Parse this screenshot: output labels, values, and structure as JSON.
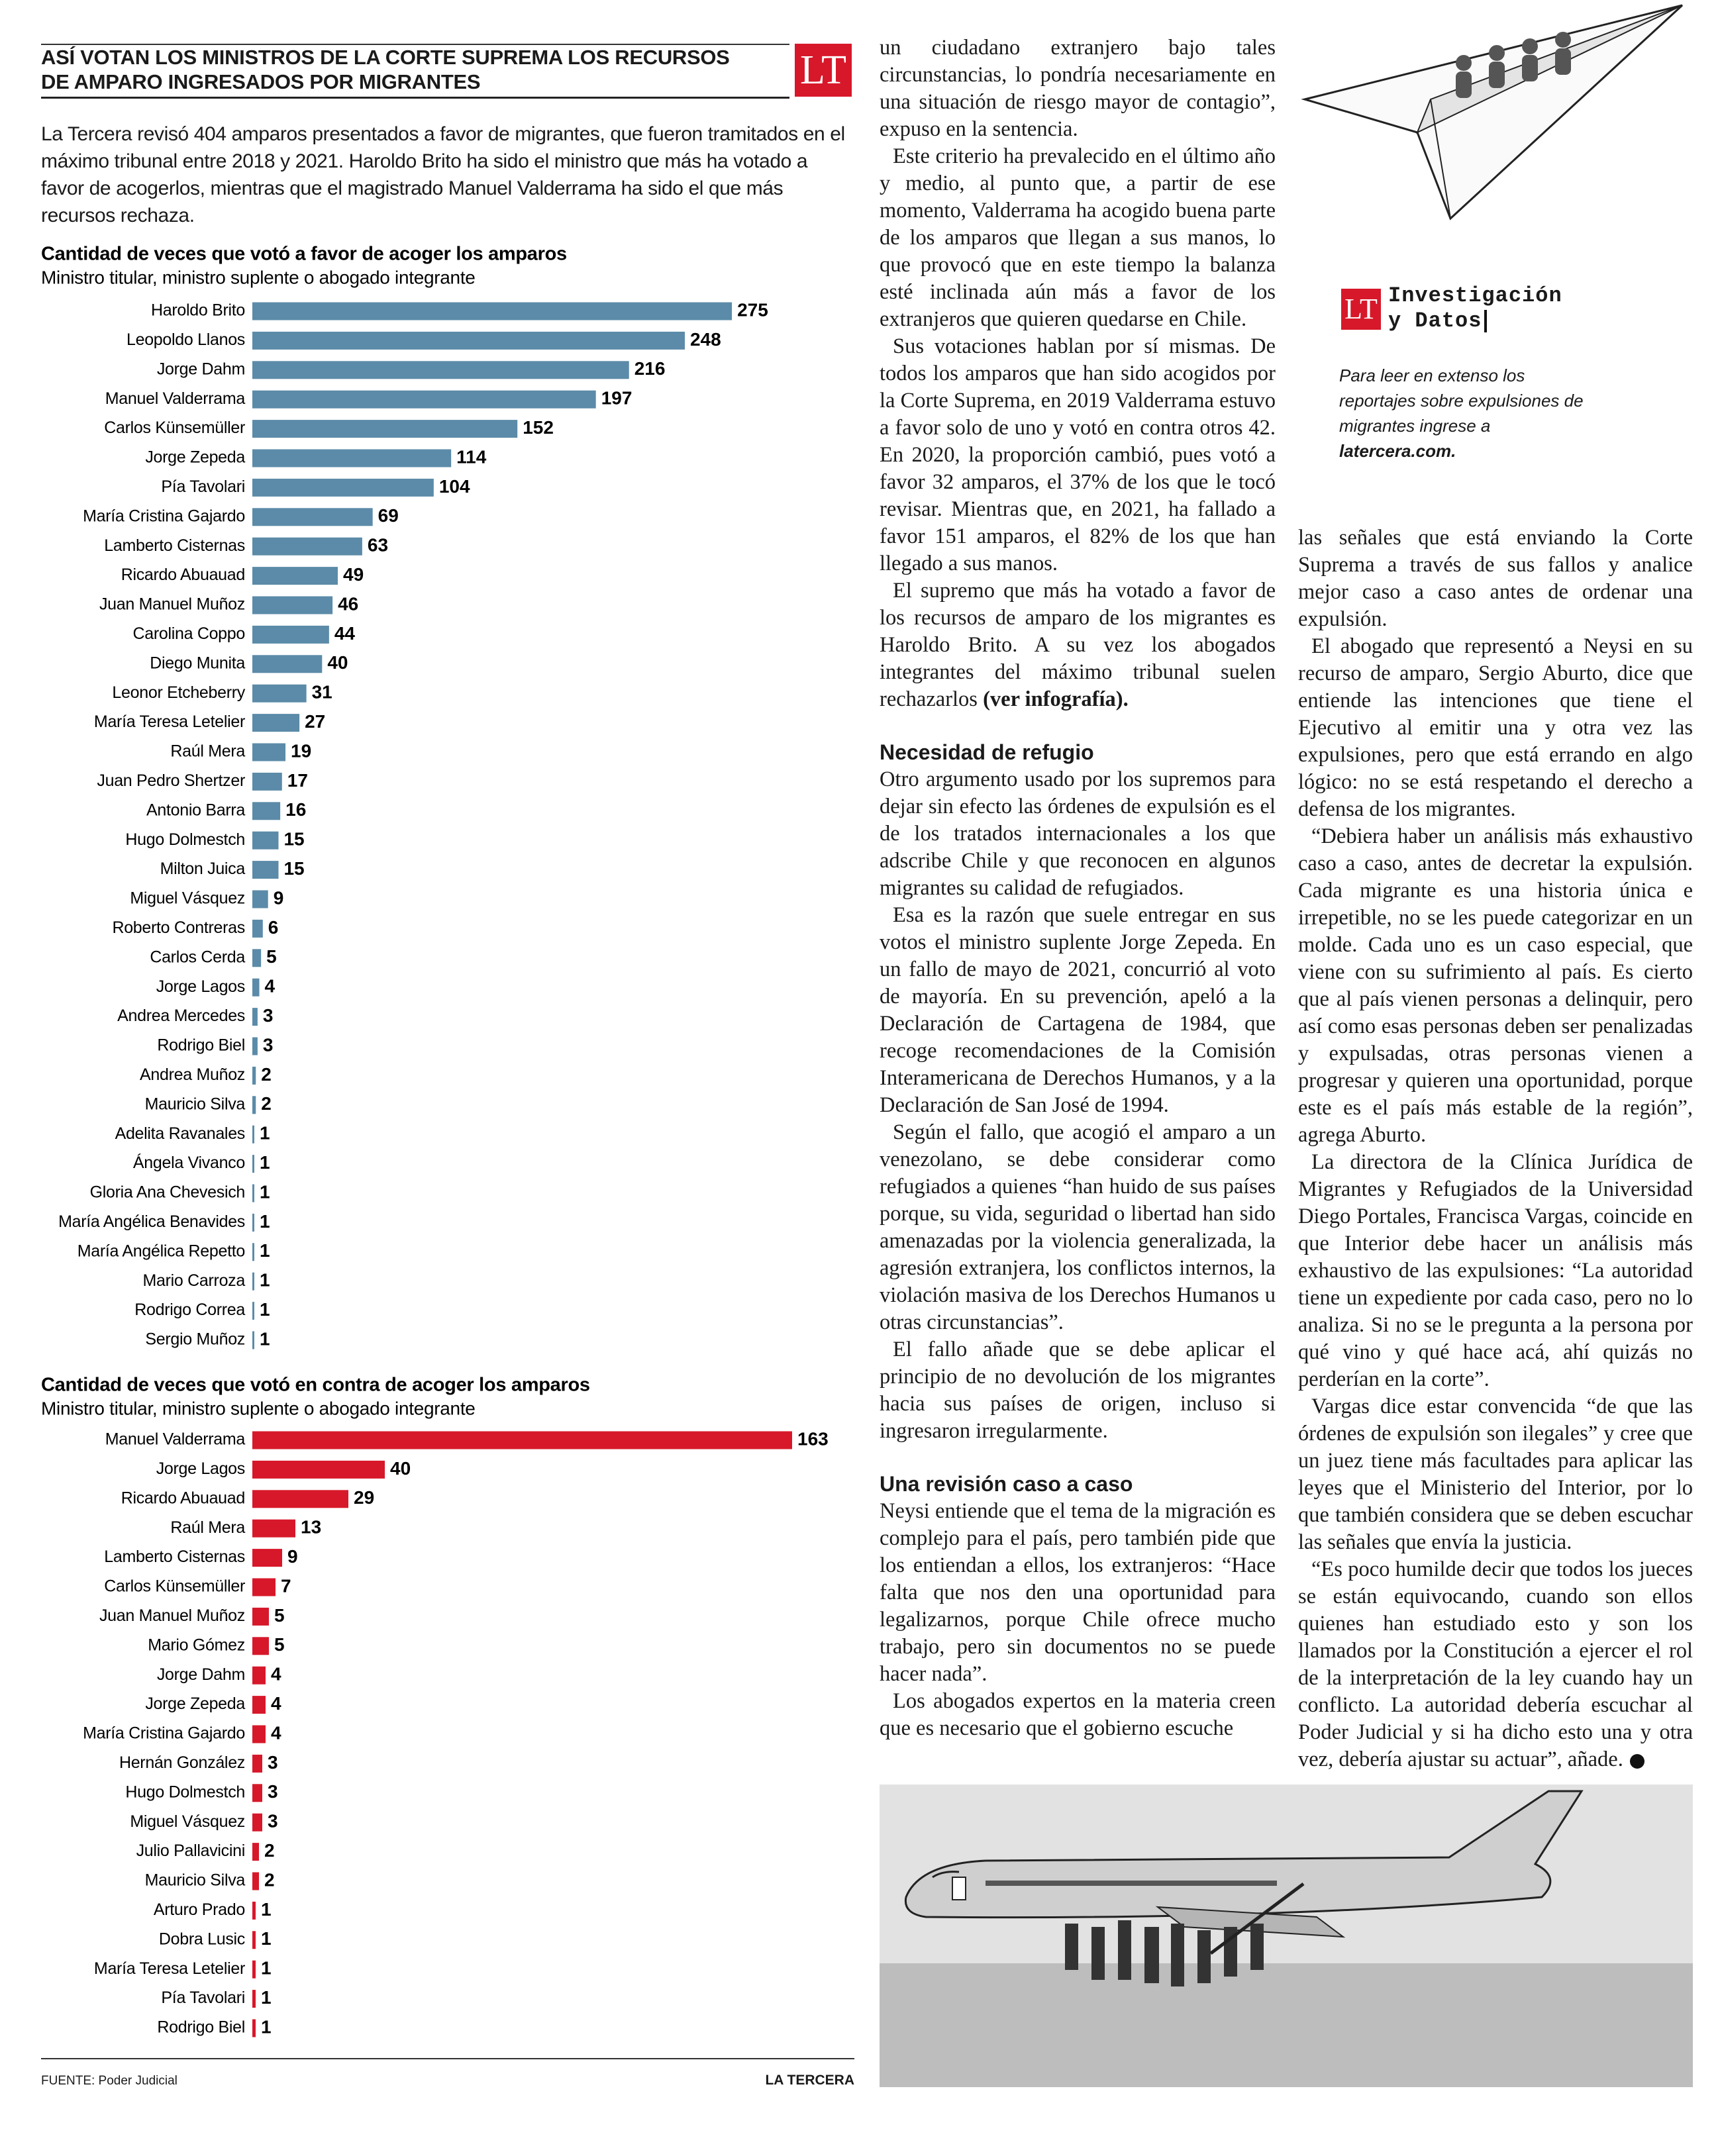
{
  "header": {
    "title_lines": [
      "ASÍ VOTAN LOS MINISTROS DE LA CORTE SUPREMA LOS RECURSOS",
      "DE AMPARO INGRESADOS POR MIGRANTES"
    ],
    "logo": "LT"
  },
  "intro": "La Tercera revisó 404 amparos presentados a favor de migrantes, que fueron tramitados en el máximo tribunal entre 2018 y 2021. Haroldo Brito ha sido el ministro que más ha votado a favor de acogerlos, mientras que el magistrado Manuel Valderrama ha sido el que más recursos rechaza.",
  "charts": [
    {
      "type": "bar",
      "orientation": "horizontal",
      "title": "Cantidad de veces que votó a favor de acoger los amparos",
      "subtitle": "Ministro titular, ministro suplente o abogado integrante",
      "color": "#5b8ba8",
      "categories": [
        "Haroldo Brito",
        "Leopoldo Llanos",
        "Jorge Dahm",
        "Manuel Valderrama",
        "Carlos Künsemüller",
        "Jorge Zepeda",
        "Pía Tavolari",
        "María Cristina Gajardo",
        "Lamberto Cisternas",
        "Ricardo Abuauad",
        "Juan Manuel Muñoz",
        "Carolina Coppo",
        "Diego Munita",
        "Leonor Etcheberry",
        "María Teresa Letelier",
        "Raúl Mera",
        "Juan Pedro Shertzer",
        "Antonio Barra",
        "Hugo Dolmestch",
        "Milton Juica",
        "Miguel Vásquez",
        "Roberto Contreras",
        "Carlos Cerda",
        "Jorge Lagos",
        "Andrea Mercedes",
        "Rodrigo Biel",
        "Andrea Muñoz",
        "Mauricio Silva",
        "Adelita Ravanales",
        "Ángela Vivanco",
        "Gloria Ana Chevesich",
        "María Angélica Benavides",
        "María Angélica Repetto",
        "Mario Carroza",
        "Rodrigo Correa",
        "Sergio Muñoz"
      ],
      "values": [
        275,
        248,
        216,
        197,
        152,
        114,
        104,
        69,
        63,
        49,
        46,
        44,
        40,
        31,
        27,
        19,
        17,
        16,
        15,
        15,
        9,
        6,
        5,
        4,
        3,
        3,
        2,
        2,
        1,
        1,
        1,
        1,
        1,
        1,
        1,
        1
      ]
    },
    {
      "type": "bar",
      "orientation": "horizontal",
      "title": "Cantidad de veces que votó en contra de acoger los amparos",
      "subtitle": "Ministro titular, ministro suplente o abogado integrante",
      "color": "#d7182a",
      "categories": [
        "Manuel Valderrama",
        "Jorge Lagos",
        "Ricardo Abuauad",
        "Raúl Mera",
        "Lamberto Cisternas",
        "Carlos Künsemüller",
        "Juan Manuel Muñoz",
        "Mario Gómez",
        "Jorge Dahm",
        "Jorge Zepeda",
        "María Cristina Gajardo",
        "Hernán González",
        "Hugo Dolmestch",
        "Miguel Vásquez",
        "Julio Pallavicini",
        "Mauricio Silva",
        "Arturo Prado",
        "Dobra Lusic",
        "María Teresa Letelier",
        "Pía Tavolari",
        "Rodrigo Biel"
      ],
      "values": [
        163,
        40,
        29,
        13,
        9,
        7,
        5,
        5,
        4,
        4,
        4,
        3,
        3,
        3,
        2,
        2,
        1,
        1,
        1,
        1,
        1
      ]
    }
  ],
  "footer": {
    "source": "FUENTE: Poder Judicial",
    "brand": "LA TERCERA"
  },
  "promo": {
    "logo": "LT",
    "title_lines": [
      "Investigación",
      "y Datos"
    ],
    "note": "Para leer en extenso los reportajes sobre expulsiones de migrantes ingrese a",
    "link": "latercera.com."
  },
  "article": {
    "middle": [
      {
        "text": "un ciudadano extranjero bajo tales circunstancias, lo pondría necesariamente en una situación de riesgo mayor de contagio”, expuso en la sentencia."
      },
      {
        "text": "Este criterio ha prevalecido en el último año y medio, al punto que, a partir de ese momento, Valderrama ha acogido buena parte de los amparos que llegan a sus manos, lo que provocó que en este tiempo la balanza esté inclinada aún más a favor de los extranjeros que quieren quedarse en Chile."
      },
      {
        "text": "Sus votaciones hablan por sí mismas. De todos los amparos que han sido acogidos por la Corte Suprema, en 2019 Valderrama estuvo a favor solo de uno y votó en contra otros 42. En 2020, la proporción cambió, pues votó a favor 32 amparos, el 37% de los que le tocó revisar. Mientras que, en 2021, ha fallado a favor 151 amparos, el 82% de los que han llegado a sus manos."
      },
      {
        "text": "El supremo que más ha votado a favor de los recursos de amparo de los migrantes es Haroldo Brito. A su vez los abogados integrantes del máximo tribunal suelen rechazarlos",
        "bold": "(ver infografía)."
      },
      {
        "heading": "Necesidad de refugio"
      },
      {
        "text": "Otro argumento usado por los supremos para dejar sin efecto las órdenes de expulsión es el de los tratados internacionales a los que adscribe Chile y que reconocen en algunos migrantes su calidad de refugiados."
      },
      {
        "text": "Esa es la razón que suele entregar en sus votos el ministro suplente Jorge Zepeda. En un fallo de mayo de 2021, concurrió al voto de mayoría. En su prevención, apeló a la Declaración de Cartagena de 1984, que recoge recomendaciones de la Comisión Interamericana de Derechos Humanos, y a la Declaración de San José de 1994."
      },
      {
        "text": "Según el fallo, que acogió el amparo a un venezolano, se debe considerar como refugiados a quienes “han huido de sus países porque, su vida, seguridad o libertad han sido amenazadas por la violencia generalizada, la agresión extranjera, los conflictos internos, la violación masiva de los Derechos Humanos u otras circunstancias”."
      },
      {
        "text": "El fallo añade que se debe aplicar el principio de no devolución de los migrantes hacia sus países de origen, incluso si ingresaron irregularmente."
      },
      {
        "heading": "Una revisión caso a caso"
      },
      {
        "text": "Neysi entiende que el tema de la migración es complejo para el país, pero también pide que los entiendan a ellos, los extranjeros: “Hace falta que nos den una oportunidad para legalizarnos, porque Chile ofrece mucho trabajo, pero sin documentos no se puede hacer nada”."
      },
      {
        "text": "Los abogados expertos en la materia creen que es necesario que el gobierno escuche"
      }
    ],
    "right": [
      {
        "text": "las señales que está enviando la Corte Suprema a través de sus fallos y analice mejor caso a caso antes de ordenar una expulsión."
      },
      {
        "text": "El abogado que representó a Neysi en su recurso de amparo, Sergio Aburto, dice que entiende las intenciones que tiene el Ejecutivo al emitir una y otra vez las expulsiones, pero que está errando en algo lógico: no se está respetando el derecho a defensa de los migrantes."
      },
      {
        "text": "“Debiera haber un análisis más exhaustivo caso a caso, antes de decretar la expulsión. Cada migrante es una historia única e irrepetible, no se les puede categorizar en un molde. Cada uno es un caso especial, que viene con su sufrimiento al país. Es cierto que al país vienen personas a delinquir, pero así como esas personas deben ser penalizadas y expulsadas, otras personas vienen a progresar y quieren una oportunidad, porque este es el país más estable de la región”, agrega Aburto."
      },
      {
        "text": "La directora de la Clínica Jurídica de Migrantes y Refugiados de la Universidad Diego Portales, Francisca Vargas, coincide en que Interior debe hacer un análisis más exhaustivo de las expulsiones: “La autoridad tiene un expediente por cada caso, pero no lo analiza. Si no se le pregunta a la persona por qué vino y qué hace acá, ahí quizás no perderían en la corte”."
      },
      {
        "text": "Vargas dice estar convencida “de que las órdenes de expulsión son ilegales” y cree que un juez tiene más facultades para aplicar las leyes que el Ministerio del Interior, por lo que también considera que se deben escuchar las señales que envía la justicia."
      },
      {
        "text": "“Es poco humilde decir que todos los jueces se están equivocando, cuando son ellos quienes han estudiado esto y son los llamados por la Constitución a ejercer el rol de la interpretación de la ley cuando hay un conflicto. La autoridad debería escuchar al Poder Judicial y si ha dicho esto una y otra vez, debería ajustar su actuar”, añade."
      }
    ]
  }
}
